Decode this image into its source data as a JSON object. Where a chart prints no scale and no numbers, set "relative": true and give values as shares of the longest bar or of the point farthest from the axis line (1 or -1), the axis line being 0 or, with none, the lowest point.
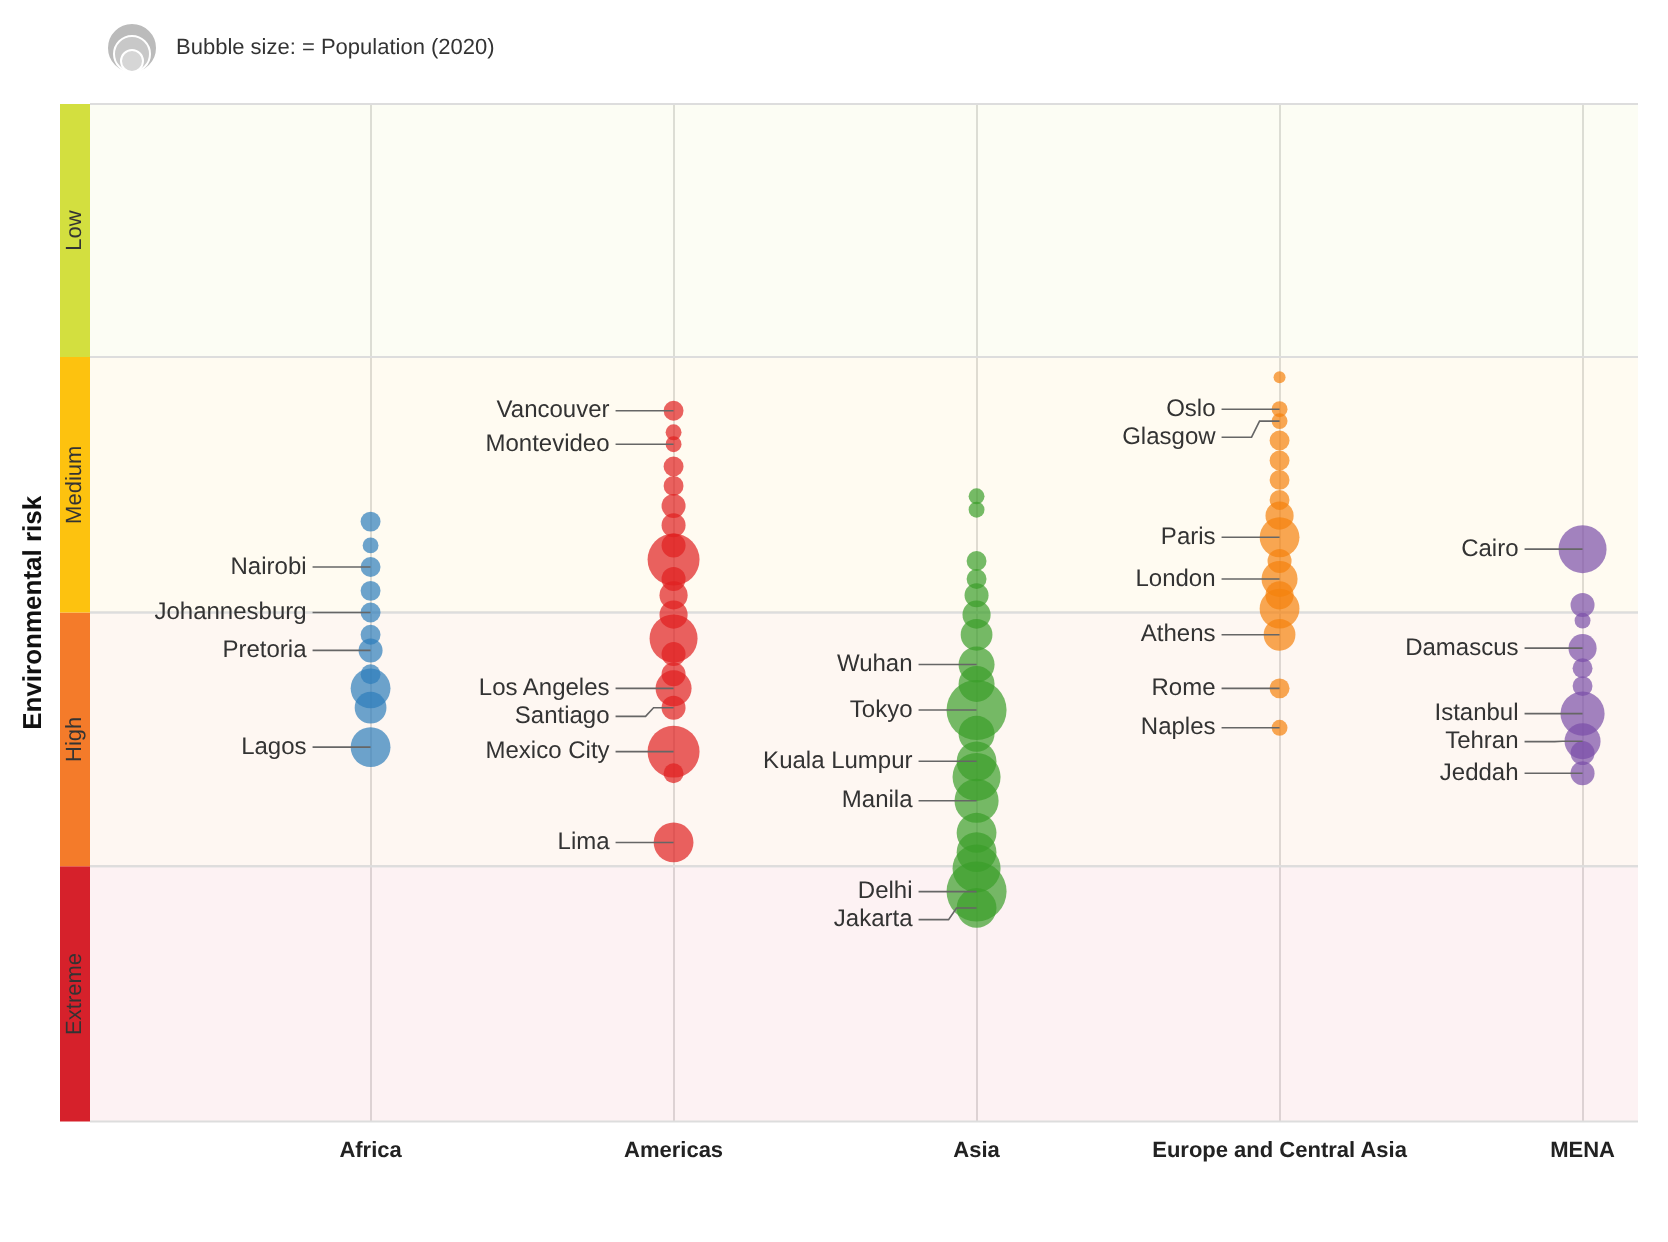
{
  "chart_data": {
    "type": "bubble",
    "relative": true,
    "ylabel": "Environmental risk",
    "categories": [
      "Africa",
      "Americas",
      "Asia",
      "Europe and Central Asia",
      "MENA"
    ],
    "series": [
      {
        "color": "#2e7dba",
        "x": [
          "Africa",
          "Africa",
          "Africa",
          "Africa",
          "Africa",
          "Africa",
          "Africa",
          "Africa",
          "Africa",
          "Africa",
          "Africa"
        ],
        "values": [
          0.806,
          0.774,
          0.745,
          0.713,
          0.684,
          0.654,
          0.633,
          0.601,
          0.582,
          0.556,
          0.503
        ],
        "sizes": [
          0.11,
          0.07,
          0.11,
          0.11,
          0.11,
          0.11,
          0.16,
          0.11,
          0.44,
          0.28,
          0.44
        ]
      },
      {
        "color": "#e02020",
        "x": [
          "Americas",
          "Americas",
          "Americas",
          "Americas",
          "Americas",
          "Americas",
          "Americas",
          "Americas",
          "Americas",
          "Americas",
          "Americas",
          "Americas",
          "Americas",
          "Americas",
          "Americas",
          "Americas",
          "Americas",
          "Americas",
          "Americas",
          "Americas"
        ],
        "values": [
          0.955,
          0.926,
          0.91,
          0.88,
          0.854,
          0.827,
          0.801,
          0.774,
          0.755,
          0.729,
          0.707,
          0.681,
          0.649,
          0.628,
          0.601,
          0.582,
          0.556,
          0.497,
          0.468,
          0.375
        ],
        "sizes": [
          0.11,
          0.07,
          0.07,
          0.11,
          0.11,
          0.16,
          0.16,
          0.16,
          0.75,
          0.16,
          0.22,
          0.22,
          0.64,
          0.16,
          0.16,
          0.36,
          0.16,
          0.75,
          0.11,
          0.44
        ]
      },
      {
        "color": "#3a9e2a",
        "x": [
          "Asia",
          "Asia",
          "Asia",
          "Asia",
          "Asia",
          "Asia",
          "Asia",
          "Asia",
          "Asia",
          "Asia",
          "Asia",
          "Asia",
          "Asia",
          "Asia",
          "Asia",
          "Asia",
          "Asia",
          "Asia",
          "Asia"
        ],
        "values": [
          0.84,
          0.822,
          0.753,
          0.729,
          0.707,
          0.681,
          0.654,
          0.614,
          0.588,
          0.553,
          0.521,
          0.484,
          0.463,
          0.431,
          0.388,
          0.362,
          0.34,
          0.309,
          0.287
        ],
        "sizes": [
          0.07,
          0.07,
          0.11,
          0.11,
          0.16,
          0.22,
          0.28,
          0.36,
          0.36,
          1,
          0.36,
          0.44,
          0.64,
          0.54,
          0.44,
          0.44,
          0.64,
          1,
          0.44
        ]
      },
      {
        "color": "#f5820d",
        "x": [
          "Europe and Central Asia",
          "Europe and Central Asia",
          "Europe and Central Asia",
          "Europe and Central Asia",
          "Europe and Central Asia",
          "Europe and Central Asia",
          "Europe and Central Asia",
          "Europe and Central Asia",
          "Europe and Central Asia",
          "Europe and Central Asia",
          "Europe and Central Asia",
          "Europe and Central Asia",
          "Europe and Central Asia",
          "Europe and Central Asia",
          "Europe and Central Asia",
          "Europe and Central Asia"
        ],
        "values": [
          1,
          0.957,
          0.941,
          0.915,
          0.888,
          0.862,
          0.835,
          0.814,
          0.785,
          0.753,
          0.729,
          0.707,
          0.689,
          0.654,
          0.582,
          0.529
        ],
        "sizes": [
          0.04,
          0.07,
          0.07,
          0.11,
          0.11,
          0.11,
          0.11,
          0.22,
          0.44,
          0.16,
          0.36,
          0.22,
          0.44,
          0.28,
          0.11,
          0.07
        ]
      },
      {
        "color": "#7b4fa8",
        "x": [
          "MENA",
          "MENA",
          "MENA",
          "MENA",
          "MENA",
          "MENA",
          "MENA",
          "MENA",
          "MENA",
          "MENA"
        ],
        "values": [
          0.769,
          0.694,
          0.673,
          0.636,
          0.609,
          0.585,
          0.548,
          0.511,
          0.495,
          0.468
        ],
        "sizes": [
          0.64,
          0.16,
          0.07,
          0.22,
          0.11,
          0.11,
          0.54,
          0.36,
          0.16,
          0.16
        ]
      }
    ],
    "bands": [
      {
        "axis": "y",
        "from": 0,
        "to": 0.343,
        "label": "Extreme",
        "color": "#d6212b"
      },
      {
        "axis": "y",
        "from": 0.343,
        "to": 0.684,
        "label": "High",
        "color": "#f47b2a"
      },
      {
        "axis": "y",
        "from": 0.684,
        "to": 1.027,
        "label": "Medium",
        "color": "#fdc20f"
      },
      {
        "axis": "y",
        "from": 1.027,
        "to": 1.367,
        "label": "Low",
        "color": "#d3df3f"
      }
    ],
    "grid": "x",
    "annotations": [
      "Bubble size: = Population (2020)",
      {
        "text": "Nairobi",
        "x": "Africa",
        "y": 0.745
      },
      {
        "text": "Johannesburg",
        "x": "Africa",
        "y": 0.684
      },
      {
        "text": "Pretoria",
        "x": "Africa",
        "y": 0.633
      },
      {
        "text": "Lagos",
        "x": "Africa",
        "y": 0.503
      },
      {
        "text": "Vancouver",
        "x": "Americas",
        "y": 0.955
      },
      {
        "text": "Montevideo",
        "x": "Americas",
        "y": 0.91
      },
      {
        "text": "Los Angeles",
        "x": "Americas",
        "y": 0.582
      },
      {
        "text": "Santiago",
        "x": "Americas",
        "y": 0.556
      },
      {
        "text": "Mexico City",
        "x": "Americas",
        "y": 0.497
      },
      {
        "text": "Lima",
        "x": "Americas",
        "y": 0.375
      },
      {
        "text": "Wuhan",
        "x": "Asia",
        "y": 0.614
      },
      {
        "text": "Tokyo",
        "x": "Asia",
        "y": 0.553
      },
      {
        "text": "Kuala Lumpur",
        "x": "Asia",
        "y": 0.484
      },
      {
        "text": "Manila",
        "x": "Asia",
        "y": 0.431
      },
      {
        "text": "Delhi",
        "x": "Asia",
        "y": 0.309
      },
      {
        "text": "Jakarta",
        "x": "Asia",
        "y": 0.287
      },
      {
        "text": "Oslo",
        "x": "Europe and Central Asia",
        "y": 0.957
      },
      {
        "text": "Glasgow",
        "x": "Europe and Central Asia",
        "y": 0.941
      },
      {
        "text": "Paris",
        "x": "Europe and Central Asia",
        "y": 0.785
      },
      {
        "text": "London",
        "x": "Europe and Central Asia",
        "y": 0.729
      },
      {
        "text": "Athens",
        "x": "Europe and Central Asia",
        "y": 0.654
      },
      {
        "text": "Rome",
        "x": "Europe and Central Asia",
        "y": 0.582
      },
      {
        "text": "Naples",
        "x": "Europe and Central Asia",
        "y": 0.529
      },
      {
        "text": "Cairo",
        "x": "MENA",
        "y": 0.769
      },
      {
        "text": "Damascus",
        "x": "MENA",
        "y": 0.636
      },
      {
        "text": "Istanbul",
        "x": "MENA",
        "y": 0.548
      },
      {
        "text": "Tehran",
        "x": "MENA",
        "y": 0.511
      },
      {
        "text": "Jeddah",
        "x": "MENA",
        "y": 0.468
      }
    ]
  }
}
